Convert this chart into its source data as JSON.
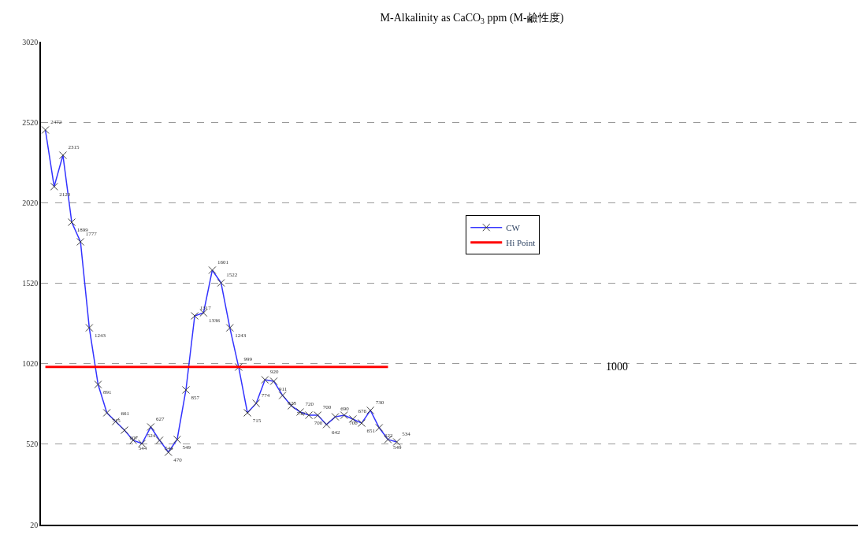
{
  "chart_data": {
    "type": "line",
    "title": "M-Alkalinity as CaCO$_{3}$ ppm (M-鹼性度)",
    "categories": [
      null,
      null,
      null,
      null,
      null,
      null,
      null,
      null,
      null,
      null,
      null,
      null,
      null,
      null,
      null,
      null,
      null,
      null,
      null,
      null,
      null,
      null,
      null,
      null,
      null,
      null,
      null,
      null,
      null,
      null,
      null,
      null,
      null,
      null,
      null,
      null,
      null,
      null,
      null,
      null,
      null,
      null,
      null,
      null,
      null,
      null,
      null,
      null,
      null,
      null,
      null,
      null,
      null,
      null,
      null,
      null,
      null,
      null,
      null,
      null,
      null,
      null,
      null,
      null,
      null,
      null,
      null,
      null,
      null,
      null,
      null,
      null,
      null,
      null,
      null,
      null,
      null,
      null,
      null,
      null,
      null,
      null,
      null,
      null,
      null,
      null,
      null,
      null,
      null,
      null,
      null,
      null,
      null
    ],
    "series": [
      {
        "name": "CW",
        "color": "#3333ff",
        "marker": "cross",
        "values": [
          2472,
          2120,
          2315,
          1899,
          1777,
          1243,
          891,
          715,
          661,
          607,
          544,
          524,
          627,
          544,
          470,
          549,
          857,
          1317,
          1336,
          1601,
          1522,
          1243,
          999,
          715,
          774,
          920,
          911,
          823,
          759,
          720,
          700,
          700,
          642,
          690,
          700,
          676,
          651,
          730,
          622,
          549,
          534,
          null,
          null,
          null,
          null,
          null,
          null,
          null,
          null,
          null,
          null,
          null,
          null,
          null,
          null,
          null,
          null,
          null,
          null,
          null,
          null,
          null,
          null,
          null,
          null,
          null,
          null,
          null,
          null,
          null,
          null,
          null,
          null,
          null,
          null,
          null,
          null,
          null,
          null,
          null,
          null,
          null,
          null,
          null,
          null,
          null,
          null,
          null,
          null,
          null,
          null,
          null,
          null
        ],
        "value_labels": [
          "2472",
          "2120",
          "2315",
          "1899",
          "1777",
          "1243",
          "891",
          "715",
          "661",
          "607",
          "544",
          "524",
          "627",
          "544",
          "470",
          "549",
          "857",
          "1317",
          "1336",
          "1601",
          "1522",
          "1243",
          "999",
          "715",
          "774",
          "920",
          "911",
          "823",
          "759",
          "720",
          "700",
          "700",
          "642",
          "690",
          "700",
          "676",
          "651",
          "730",
          "622",
          "549",
          "534",
          null,
          null,
          null,
          null,
          null,
          null,
          null,
          null,
          null,
          null,
          null,
          null,
          null,
          null,
          null,
          null,
          null,
          null,
          null,
          null,
          null,
          null,
          null,
          null,
          null,
          null,
          null,
          null,
          null,
          null,
          null,
          null,
          null,
          null,
          null,
          null,
          null,
          null,
          null,
          null,
          null,
          null,
          null,
          null,
          null,
          null,
          null,
          null,
          null,
          null,
          null,
          null
        ]
      },
      {
        "name": "Hi Point",
        "color": "#ff0000",
        "marker": "none",
        "values": [
          1000,
          1000,
          1000,
          1000,
          1000,
          1000,
          1000,
          1000,
          1000,
          1000,
          1000,
          1000,
          1000,
          1000,
          1000,
          1000,
          1000,
          1000,
          1000,
          1000,
          1000,
          1000,
          1000,
          1000,
          1000,
          1000,
          1000,
          1000,
          1000,
          1000,
          1000,
          1000,
          1000,
          1000,
          1000,
          1000,
          1000,
          1000,
          1000,
          1000,
          null,
          null,
          null,
          null,
          null,
          null,
          null,
          null,
          null,
          null,
          null,
          null,
          null,
          null,
          null,
          null,
          null,
          null,
          null,
          null,
          null,
          null,
          null,
          null,
          null,
          null,
          null,
          null,
          null,
          null,
          null,
          null,
          null,
          null,
          null,
          null,
          null,
          null,
          null,
          null,
          null,
          null,
          null,
          null,
          null,
          null,
          null,
          null,
          null,
          null,
          null,
          null,
          null
        ]
      }
    ],
    "ylim": [
      20,
      3020
    ],
    "yticks": [
      20,
      520,
      1020,
      1520,
      2020,
      2520,
      3020
    ],
    "grid": "y",
    "legend": "right",
    "annotations": [
      "1000"
    ]
  }
}
